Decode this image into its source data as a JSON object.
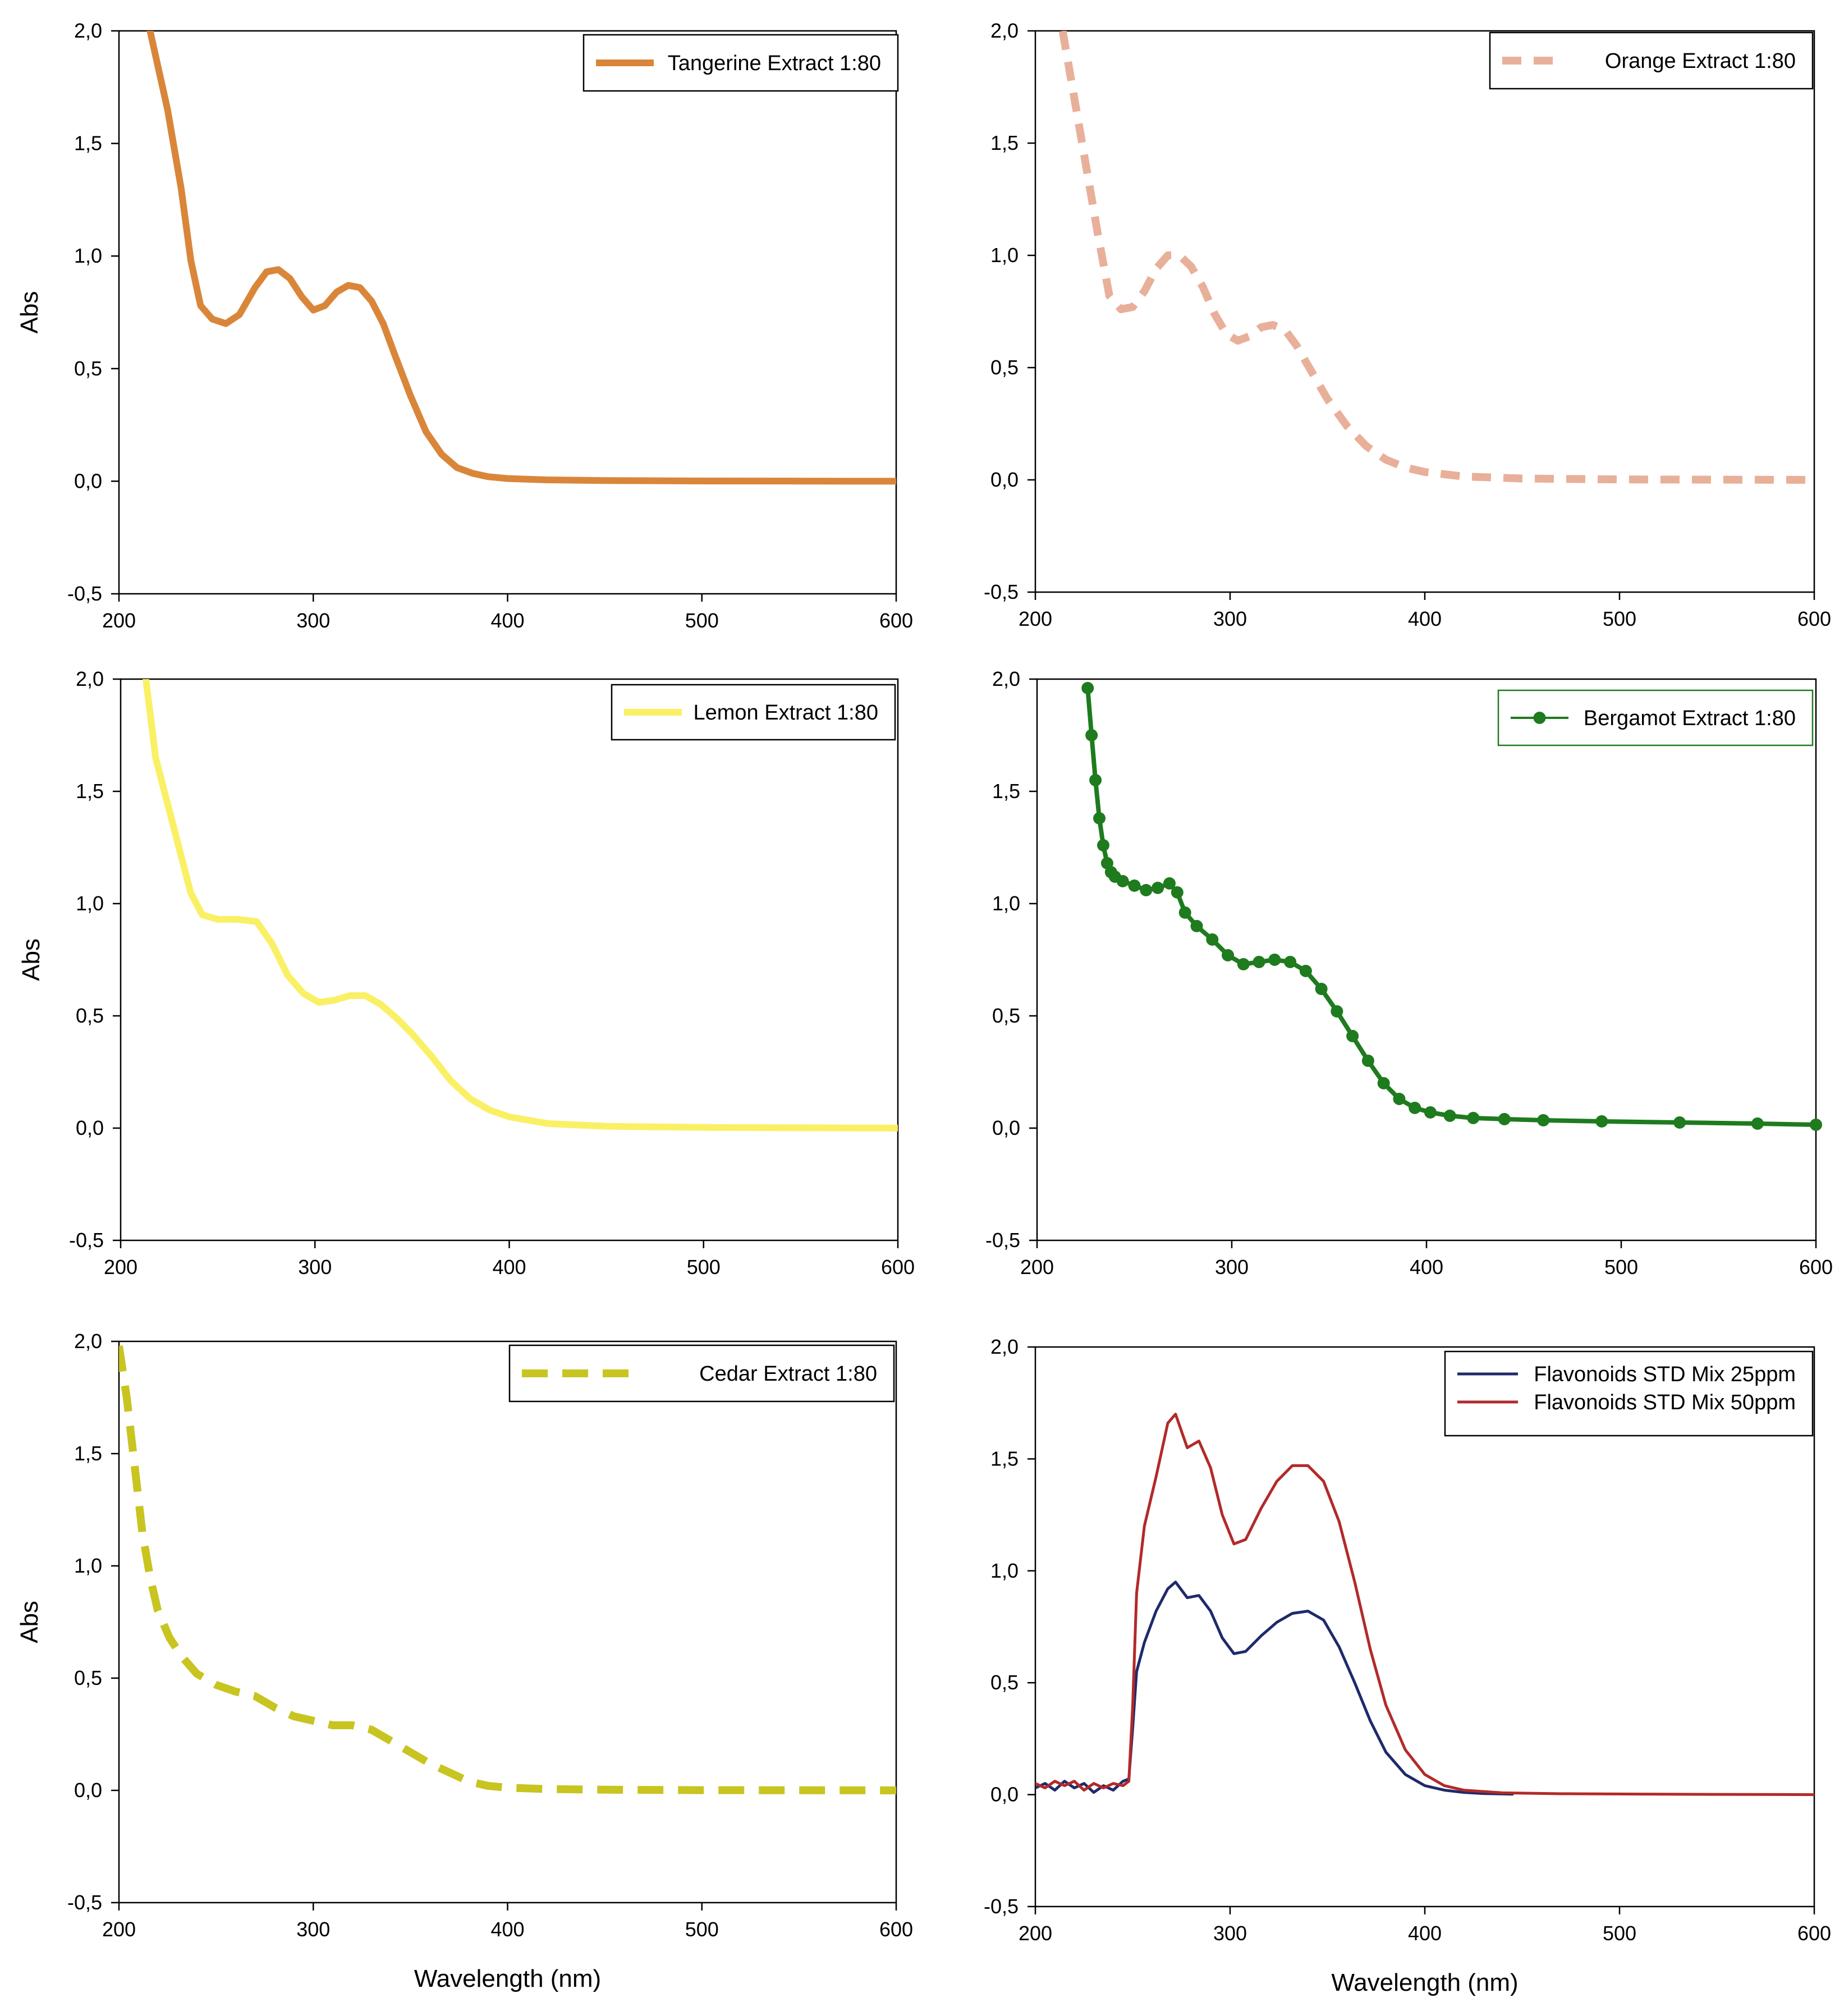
{
  "figure": {
    "ylabel": "Abs",
    "xlabel": "Wavelength (nm)"
  },
  "chart_data": [
    {
      "id": "tangerine",
      "type": "line",
      "xlim": [
        200,
        600
      ],
      "ylim": [
        -0.5,
        2.0
      ],
      "xticks": [
        200,
        300,
        400,
        500,
        600
      ],
      "yticks": [
        -0.5,
        0.0,
        0.5,
        1.0,
        1.5,
        2.0
      ],
      "ytick_labels": [
        "-0,5",
        "0,0",
        "0,5",
        "1,0",
        "1,5",
        "2,0"
      ],
      "ylabel": "Abs",
      "xlabel": "",
      "legend_position": "top-right",
      "series": [
        {
          "name": "Tangerine Extract 1:80",
          "color": "#D9863A",
          "style": "solid",
          "x": [
            216,
            225,
            232,
            237,
            242,
            248,
            255,
            262,
            270,
            276,
            282,
            288,
            294,
            300,
            306,
            312,
            318,
            324,
            330,
            336,
            342,
            350,
            358,
            366,
            374,
            382,
            390,
            400,
            420,
            450,
            500,
            600
          ],
          "y": [
            2.0,
            1.65,
            1.3,
            0.98,
            0.78,
            0.72,
            0.7,
            0.74,
            0.86,
            0.93,
            0.94,
            0.9,
            0.82,
            0.76,
            0.78,
            0.84,
            0.87,
            0.86,
            0.8,
            0.7,
            0.56,
            0.38,
            0.22,
            0.12,
            0.06,
            0.035,
            0.02,
            0.012,
            0.006,
            0.003,
            0.001,
            0.0
          ]
        }
      ]
    },
    {
      "id": "orange",
      "type": "line",
      "xlim": [
        200,
        600
      ],
      "ylim": [
        -0.5,
        2.0
      ],
      "xticks": [
        200,
        300,
        400,
        500,
        600
      ],
      "yticks": [
        -0.5,
        0.0,
        0.5,
        1.0,
        1.5,
        2.0
      ],
      "ytick_labels": [
        "-0,5",
        "0,0",
        "0,5",
        "1,0",
        "1,5",
        "2,0"
      ],
      "ylabel": "",
      "xlabel": "",
      "legend_position": "top-right",
      "series": [
        {
          "name": "Orange Extract 1:80",
          "color": "#E8B09A",
          "style": "dashed",
          "x": [
            214,
            220,
            226,
            232,
            238,
            244,
            250,
            256,
            262,
            268,
            274,
            280,
            286,
            292,
            298,
            304,
            310,
            316,
            322,
            328,
            334,
            342,
            350,
            360,
            370,
            380,
            390,
            400,
            420,
            450,
            500,
            600
          ],
          "y": [
            2.0,
            1.7,
            1.4,
            1.1,
            0.82,
            0.76,
            0.77,
            0.84,
            0.94,
            1.0,
            1.0,
            0.95,
            0.86,
            0.74,
            0.65,
            0.62,
            0.64,
            0.68,
            0.69,
            0.67,
            0.6,
            0.48,
            0.36,
            0.24,
            0.15,
            0.09,
            0.055,
            0.035,
            0.015,
            0.006,
            0.002,
            0.0
          ]
        }
      ]
    },
    {
      "id": "lemon",
      "type": "line",
      "xlim": [
        200,
        600
      ],
      "ylim": [
        -0.5,
        2.0
      ],
      "xticks": [
        200,
        300,
        400,
        500,
        600
      ],
      "yticks": [
        -0.5,
        0.0,
        0.5,
        1.0,
        1.5,
        2.0
      ],
      "ytick_labels": [
        "-0,5",
        "0,0",
        "0,5",
        "1,0",
        "1,5",
        "2,0"
      ],
      "ylabel": "Abs",
      "xlabel": "",
      "legend_position": "top-right",
      "series": [
        {
          "name": "Lemon Extract 1:80",
          "color": "#FAF065",
          "style": "solid",
          "x": [
            213,
            218,
            224,
            230,
            236,
            242,
            250,
            260,
            270,
            278,
            286,
            294,
            302,
            310,
            318,
            326,
            334,
            342,
            350,
            360,
            370,
            380,
            390,
            400,
            420,
            450,
            500,
            600
          ],
          "y": [
            2.0,
            1.65,
            1.45,
            1.25,
            1.05,
            0.95,
            0.93,
            0.93,
            0.92,
            0.82,
            0.68,
            0.6,
            0.56,
            0.57,
            0.59,
            0.59,
            0.55,
            0.49,
            0.42,
            0.32,
            0.21,
            0.13,
            0.08,
            0.05,
            0.02,
            0.008,
            0.003,
            0.0
          ]
        }
      ]
    },
    {
      "id": "bergamot",
      "type": "scatter",
      "xlim": [
        200,
        600
      ],
      "ylim": [
        -0.5,
        2.0
      ],
      "xticks": [
        200,
        300,
        400,
        500,
        600
      ],
      "yticks": [
        -0.5,
        0.0,
        0.5,
        1.0,
        1.5,
        2.0
      ],
      "ytick_labels": [
        "-0,5",
        "0,0",
        "0,5",
        "1,0",
        "1,5",
        "2,0"
      ],
      "ylabel": "",
      "xlabel": "",
      "legend_position": "top-right",
      "series": [
        {
          "name": "Bergamot Extract 1:80",
          "color": "#1E7B1E",
          "style": "line-markers",
          "x": [
            226,
            228,
            230,
            232,
            234,
            236,
            238,
            240,
            244,
            250,
            256,
            262,
            268,
            272,
            276,
            282,
            290,
            298,
            306,
            314,
            322,
            330,
            338,
            346,
            354,
            362,
            370,
            378,
            386,
            394,
            402,
            412,
            424,
            440,
            460,
            490,
            530,
            570,
            600
          ],
          "y": [
            1.96,
            1.75,
            1.55,
            1.38,
            1.26,
            1.18,
            1.14,
            1.12,
            1.1,
            1.08,
            1.06,
            1.07,
            1.09,
            1.05,
            0.96,
            0.9,
            0.84,
            0.77,
            0.73,
            0.74,
            0.75,
            0.74,
            0.7,
            0.62,
            0.52,
            0.41,
            0.3,
            0.2,
            0.13,
            0.09,
            0.07,
            0.055,
            0.045,
            0.04,
            0.035,
            0.03,
            0.025,
            0.02,
            0.015
          ]
        }
      ]
    },
    {
      "id": "cedar",
      "type": "line",
      "xlim": [
        200,
        600
      ],
      "ylim": [
        -0.5,
        2.0
      ],
      "xticks": [
        200,
        300,
        400,
        500,
        600
      ],
      "yticks": [
        -0.5,
        0.0,
        0.5,
        1.0,
        1.5,
        2.0
      ],
      "ytick_labels": [
        "-0,5",
        "0,0",
        "0,5",
        "1,0",
        "1,5",
        "2,0"
      ],
      "ylabel": "Abs",
      "xlabel": "Wavelength (nm)",
      "legend_position": "top-right",
      "series": [
        {
          "name": "Cedar  Extract 1:80",
          "color": "#C8C420",
          "style": "dashed",
          "x": [
            200,
            204,
            208,
            212,
            216,
            220,
            226,
            232,
            240,
            250,
            260,
            270,
            280,
            290,
            300,
            310,
            320,
            330,
            340,
            350,
            360,
            370,
            380,
            390,
            400,
            420,
            450,
            500,
            600
          ],
          "y": [
            1.98,
            1.75,
            1.45,
            1.15,
            0.95,
            0.8,
            0.68,
            0.6,
            0.52,
            0.47,
            0.44,
            0.42,
            0.37,
            0.33,
            0.31,
            0.29,
            0.29,
            0.27,
            0.22,
            0.17,
            0.12,
            0.08,
            0.04,
            0.02,
            0.012,
            0.006,
            0.003,
            0.001,
            0.0
          ]
        }
      ]
    },
    {
      "id": "flavonoids",
      "type": "line",
      "xlim": [
        200,
        600
      ],
      "ylim": [
        -0.5,
        2.0
      ],
      "xticks": [
        200,
        300,
        400,
        500,
        600
      ],
      "yticks": [
        -0.5,
        0.0,
        0.5,
        1.0,
        1.5,
        2.0
      ],
      "ytick_labels": [
        "-0,5",
        "0,0",
        "0,5",
        "1,0",
        "1,5",
        "2,0"
      ],
      "ylabel": "",
      "xlabel": "Wavelength (nm)",
      "legend_position": "top-right",
      "series": [
        {
          "name": "Flavonoids STD Mix 25ppm",
          "color": "#1F2A6B",
          "style": "solid",
          "x": [
            200,
            205,
            210,
            215,
            220,
            225,
            230,
            235,
            240,
            245,
            248,
            250,
            252,
            256,
            262,
            268,
            272,
            278,
            284,
            290,
            296,
            302,
            308,
            316,
            324,
            332,
            340,
            348,
            356,
            364,
            372,
            380,
            390,
            400,
            410,
            420,
            430,
            445
          ],
          "y": [
            0.03,
            0.05,
            0.02,
            0.06,
            0.03,
            0.05,
            0.01,
            0.04,
            0.02,
            0.06,
            0.07,
            0.3,
            0.55,
            0.68,
            0.82,
            0.92,
            0.95,
            0.88,
            0.89,
            0.82,
            0.7,
            0.63,
            0.64,
            0.71,
            0.77,
            0.81,
            0.82,
            0.78,
            0.66,
            0.5,
            0.33,
            0.19,
            0.09,
            0.04,
            0.02,
            0.01,
            0.005,
            0.002
          ]
        },
        {
          "name": "Flavonoids STD Mix 50ppm",
          "color": "#B22A2A",
          "style": "solid",
          "x": [
            200,
            205,
            210,
            215,
            220,
            225,
            230,
            235,
            240,
            245,
            248,
            250,
            252,
            256,
            262,
            268,
            272,
            278,
            284,
            290,
            296,
            302,
            308,
            316,
            324,
            332,
            340,
            348,
            356,
            364,
            372,
            380,
            390,
            400,
            410,
            420,
            440,
            470,
            520,
            600
          ],
          "y": [
            0.05,
            0.03,
            0.06,
            0.04,
            0.06,
            0.02,
            0.05,
            0.03,
            0.05,
            0.04,
            0.06,
            0.4,
            0.9,
            1.2,
            1.42,
            1.66,
            1.7,
            1.55,
            1.58,
            1.46,
            1.25,
            1.12,
            1.14,
            1.28,
            1.4,
            1.47,
            1.47,
            1.4,
            1.22,
            0.95,
            0.65,
            0.4,
            0.2,
            0.09,
            0.04,
            0.02,
            0.008,
            0.004,
            0.002,
            0.0
          ]
        }
      ]
    }
  ]
}
